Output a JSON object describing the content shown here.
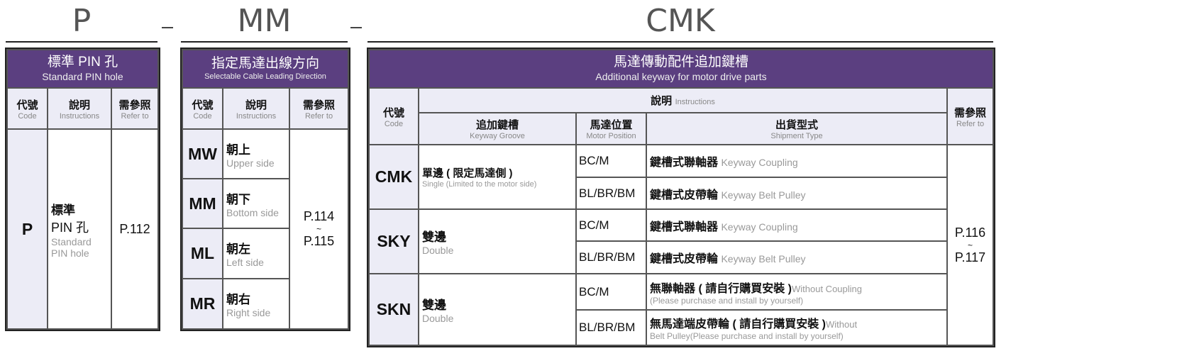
{
  "titles": {
    "p": "P",
    "mm": "MM",
    "cmk": "CMK",
    "separator": "-"
  },
  "colors": {
    "header_purple": "#5b3f80",
    "header_cell": "#ececf6"
  },
  "table_p": {
    "header_zh": "標準 PIN 孔",
    "header_en": "Standard PIN hole",
    "cols": [
      {
        "zh": "代號",
        "en": "Code"
      },
      {
        "zh": "說明",
        "en": "Instructions"
      },
      {
        "zh": "需參照",
        "en": "Refer to"
      }
    ],
    "row": {
      "code": "P",
      "desc_zh1": "標準",
      "desc_zh2": "PIN 孔",
      "desc_en1": "Standard",
      "desc_en2": "PIN hole",
      "ref": "P.112"
    }
  },
  "table_mm": {
    "header_zh": "指定馬達出線方向",
    "header_en": "Selectable Cable Leading Direction",
    "cols": [
      {
        "zh": "代號",
        "en": "Code"
      },
      {
        "zh": "說明",
        "en": "Instructions"
      },
      {
        "zh": "需參照",
        "en": "Refer to"
      }
    ],
    "rows": [
      {
        "code": "MW",
        "zh": "朝上",
        "en": "Upper side"
      },
      {
        "code": "MM",
        "zh": "朝下",
        "en": "Bottom side"
      },
      {
        "code": "ML",
        "zh": "朝左",
        "en": "Left side"
      },
      {
        "code": "MR",
        "zh": "朝右",
        "en": "Right side"
      }
    ],
    "ref_from": "P.114",
    "ref_sep": "~",
    "ref_to": "P.115"
  },
  "table_cmk": {
    "header_zh": "馬達傳動配件追加鍵槽",
    "header_en": "Additional keyway for motor drive parts",
    "code_col": {
      "zh": "代號",
      "en": "Code"
    },
    "instructions": {
      "zh": "說明",
      "en": "Instructions"
    },
    "refer_col": {
      "zh": "需參照",
      "en": "Refer to"
    },
    "sub_cols": [
      {
        "zh": "追加鍵槽",
        "en": "Keyway Groove"
      },
      {
        "zh": "馬達位置",
        "en": "Motor Position"
      },
      {
        "zh": "出貨型式",
        "en": "Shipment Type"
      }
    ],
    "groups": [
      {
        "code": "CMK",
        "zh": "單邊 ( 限定馬達側 )",
        "en": "Single (Limited to the motor side)",
        "rows": [
          {
            "pos": "BC/M",
            "zh": "鍵槽式聯軸器",
            "en": "Keyway Coupling"
          },
          {
            "pos": "BL/BR/BM",
            "zh": "鍵槽式皮帶輪",
            "en": "Keyway Belt Pulley"
          }
        ]
      },
      {
        "code": "SKY",
        "zh": "雙邊",
        "en": "Double",
        "rows": [
          {
            "pos": "BC/M",
            "zh": "鍵槽式聯軸器",
            "en": "Keyway Coupling"
          },
          {
            "pos": "BL/BR/BM",
            "zh": "鍵槽式皮帶輪",
            "en": "Keyway Belt Pulley"
          }
        ]
      },
      {
        "code": "SKN",
        "zh": "雙邊",
        "en": "Double",
        "rows": [
          {
            "pos": "BC/M",
            "zh": "無聯軸器 ( 請自行購買安裝 )",
            "en": "Without Coupling",
            "en2": "(Please purchase and install by yourself)"
          },
          {
            "pos": "BL/BR/BM",
            "zh": "無馬達端皮帶輪 ( 請自行購買安裝 )",
            "en": "Without",
            "en2": "Belt Pulley(Please purchase and install by yourself)"
          }
        ]
      }
    ],
    "ref_from": "P.116",
    "ref_sep": "~",
    "ref_to": "P.117"
  }
}
